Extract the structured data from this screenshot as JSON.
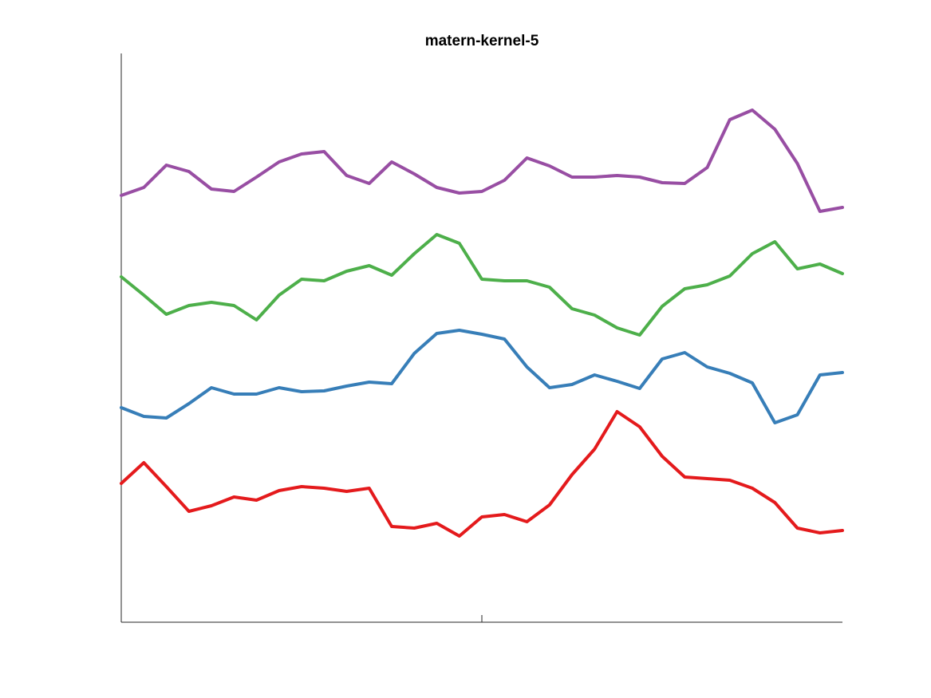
{
  "chart_data": {
    "type": "line",
    "title": "matern-kernel-5",
    "x": [
      0,
      1,
      2,
      3,
      4,
      5,
      6,
      7,
      8,
      9,
      10,
      11,
      12,
      13,
      14,
      15,
      16,
      17,
      18,
      19,
      20,
      21,
      22,
      23,
      24,
      25,
      26,
      27,
      28,
      29,
      30,
      31,
      32
    ],
    "xlim": [
      0,
      32
    ],
    "xticks": [
      16
    ],
    "ylim": [
      0,
      713
    ],
    "series": [
      {
        "color": "#984ea3",
        "values": [
          535,
          545,
          573,
          565,
          543,
          540,
          558,
          577,
          587,
          590,
          560,
          550,
          577,
          562,
          545,
          538,
          540,
          554,
          582,
          572,
          558,
          558,
          560,
          558,
          551,
          550,
          570,
          630,
          642,
          618,
          575,
          515,
          520
        ]
      },
      {
        "color": "#4daf4a",
        "values": [
          433,
          410,
          386,
          397,
          401,
          397,
          379,
          410,
          430,
          428,
          440,
          447,
          435,
          462,
          486,
          475,
          430,
          428,
          428,
          420,
          393,
          385,
          369,
          360,
          396,
          418,
          423,
          434,
          462,
          477,
          443,
          449,
          437
        ]
      },
      {
        "color": "#377eb8",
        "values": [
          269,
          258,
          256,
          274,
          294,
          286,
          286,
          294,
          289,
          290,
          296,
          301,
          299,
          337,
          362,
          366,
          361,
          355,
          320,
          294,
          298,
          310,
          302,
          293,
          330,
          338,
          320,
          312,
          300,
          250,
          260,
          310,
          313
        ]
      },
      {
        "color": "#e41a1c",
        "values": [
          174,
          200,
          170,
          139,
          146,
          157,
          153,
          165,
          170,
          168,
          164,
          168,
          120,
          118,
          124,
          108,
          132,
          135,
          126,
          147,
          185,
          217,
          264,
          245,
          208,
          182,
          180,
          178,
          168,
          150,
          118,
          112,
          115
        ]
      }
    ]
  }
}
